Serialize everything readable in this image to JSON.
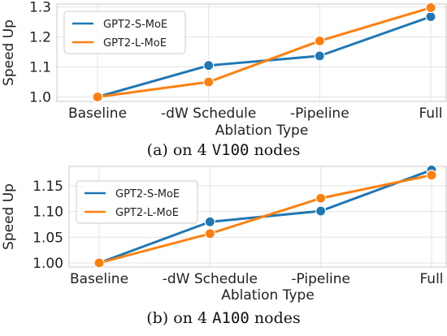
{
  "series_colors": [
    "#1f77b4",
    "#ff7f0e"
  ],
  "chart_data": [
    {
      "type": "line",
      "caption": {
        "prefix": "(a) on 4 ",
        "gpu": "V100",
        "suffix": " nodes"
      },
      "xlabel": "Ablation Type",
      "ylabel": "Speed Up",
      "categories": [
        "Baseline",
        "-dW Schedule",
        "-Pipeline",
        "Full"
      ],
      "ylim": [
        0.985,
        1.31
      ],
      "yticks": [
        1.0,
        1.1,
        1.2,
        1.3
      ],
      "ytick_labels": [
        "1.0",
        "1.1",
        "1.2",
        "1.3"
      ],
      "grid": true,
      "legend_position": "top-left",
      "series": [
        {
          "name": "GPT2-S-MoE",
          "values": [
            1.0,
            1.105,
            1.137,
            1.268
          ]
        },
        {
          "name": "GPT2-L-MoE",
          "values": [
            1.0,
            1.05,
            1.187,
            1.298
          ]
        }
      ]
    },
    {
      "type": "line",
      "caption": {
        "prefix": "(b) on 4 ",
        "gpu": "A100",
        "suffix": " nodes"
      },
      "xlabel": "Ablation Type",
      "ylabel": "Speed Up",
      "categories": [
        "Baseline",
        "-dW Schedule",
        "-Pipeline",
        "Full"
      ],
      "ylim": [
        0.992,
        1.188
      ],
      "yticks": [
        1.0,
        1.05,
        1.1,
        1.15
      ],
      "ytick_labels": [
        "1.00",
        "1.05",
        "1.10",
        "1.15"
      ],
      "grid": true,
      "legend_position": "top-left",
      "series": [
        {
          "name": "GPT2-S-MoE",
          "values": [
            1.0,
            1.08,
            1.101,
            1.181
          ]
        },
        {
          "name": "GPT2-L-MoE",
          "values": [
            1.0,
            1.057,
            1.126,
            1.171
          ]
        }
      ]
    }
  ]
}
